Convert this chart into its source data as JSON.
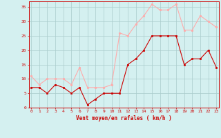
{
  "hours": [
    0,
    1,
    2,
    3,
    4,
    5,
    6,
    7,
    8,
    9,
    10,
    11,
    12,
    13,
    14,
    15,
    16,
    17,
    18,
    19,
    20,
    21,
    22,
    23
  ],
  "vent_moyen": [
    7,
    7,
    5,
    8,
    7,
    5,
    7,
    1,
    3,
    5,
    5,
    5,
    15,
    17,
    20,
    25,
    25,
    25,
    25,
    15,
    17,
    17,
    20,
    14
  ],
  "rafales": [
    11,
    8,
    10,
    10,
    10,
    8,
    14,
    7,
    7,
    7,
    8,
    26,
    25,
    29,
    32,
    36,
    34,
    34,
    36,
    27,
    27,
    32,
    30,
    28
  ],
  "color_moyen": "#cc0000",
  "color_rafales": "#ffaaaa",
  "bg_color": "#d4f0f0",
  "grid_color": "#aacccc",
  "xlabel": "Vent moyen/en rafales ( km/h )",
  "xlabel_color": "#cc0000",
  "ylim": [
    0,
    37
  ],
  "yticks": [
    0,
    5,
    10,
    15,
    20,
    25,
    30,
    35
  ],
  "xticks": [
    0,
    1,
    2,
    3,
    4,
    5,
    6,
    7,
    8,
    9,
    10,
    11,
    12,
    13,
    14,
    15,
    16,
    17,
    18,
    19,
    20,
    21,
    22,
    23
  ],
  "tick_color": "#cc0000",
  "spine_color": "#cc0000"
}
